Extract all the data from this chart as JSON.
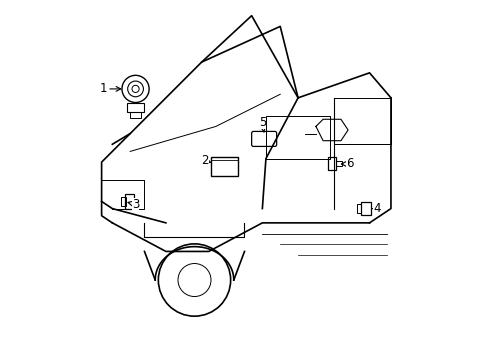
{
  "title": "",
  "background_color": "#ffffff",
  "line_color": "#000000",
  "label_color": "#000000",
  "fig_width": 4.89,
  "fig_height": 3.6,
  "dpi": 100
}
